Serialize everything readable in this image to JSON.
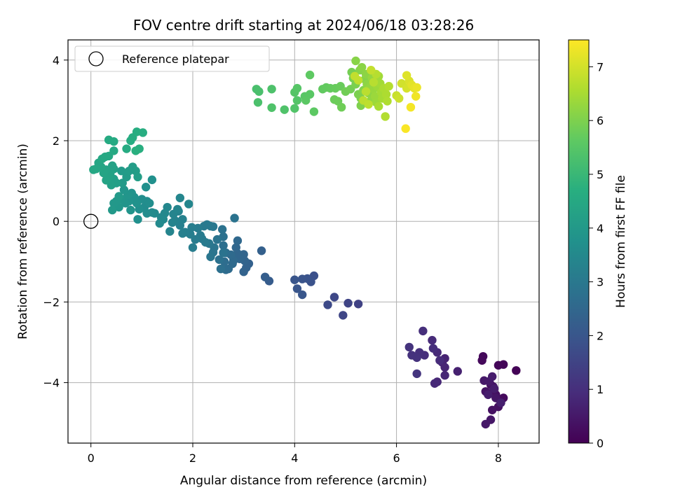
{
  "chart_data": {
    "type": "scatter",
    "title": "FOV centre drift starting at 2024/06/18 03:28:26",
    "xlabel": "Angular distance from reference (arcmin)",
    "ylabel": "Rotation from reference (arcmin)",
    "xlim": [
      -0.45,
      8.8
    ],
    "ylim": [
      -5.5,
      4.5
    ],
    "xticks": [
      0,
      2,
      4,
      6,
      8
    ],
    "yticks": [
      -4,
      -2,
      0,
      2,
      4
    ],
    "grid": true,
    "legend": {
      "placement": "top-left",
      "entries": [
        "Reference platepar"
      ]
    },
    "reference_point": {
      "x": 0,
      "y": 0,
      "label": "Reference platepar"
    },
    "colorbar": {
      "label": "Hours from first FF file",
      "range": [
        0,
        7.5
      ],
      "ticks": [
        0,
        1,
        2,
        3,
        4,
        5,
        6,
        7
      ],
      "colormap": "viridis"
    },
    "points": [
      {
        "x": 8.35,
        "y": -3.7,
        "t": 0.05
      },
      {
        "x": 8.1,
        "y": -3.55,
        "t": 0.1
      },
      {
        "x": 8.0,
        "y": -3.57,
        "t": 0.12
      },
      {
        "x": 7.7,
        "y": -3.35,
        "t": 0.15
      },
      {
        "x": 7.68,
        "y": -3.45,
        "t": 0.18
      },
      {
        "x": 8.1,
        "y": -4.38,
        "t": 0.2
      },
      {
        "x": 8.02,
        "y": -4.42,
        "t": 0.22
      },
      {
        "x": 7.9,
        "y": -4.25,
        "t": 0.25
      },
      {
        "x": 7.85,
        "y": -4.05,
        "t": 0.28
      },
      {
        "x": 7.95,
        "y": -4.3,
        "t": 0.3
      },
      {
        "x": 8.0,
        "y": -4.6,
        "t": 0.32
      },
      {
        "x": 7.88,
        "y": -4.68,
        "t": 0.35
      },
      {
        "x": 7.75,
        "y": -4.22,
        "t": 0.38
      },
      {
        "x": 7.9,
        "y": -4.1,
        "t": 0.4
      },
      {
        "x": 7.78,
        "y": -4.25,
        "t": 0.42
      },
      {
        "x": 7.95,
        "y": -4.38,
        "t": 0.45
      },
      {
        "x": 7.85,
        "y": -4.92,
        "t": 0.48
      },
      {
        "x": 7.75,
        "y": -5.03,
        "t": 0.5
      },
      {
        "x": 7.72,
        "y": -3.95,
        "t": 0.52
      },
      {
        "x": 7.82,
        "y": -3.97,
        "t": 0.55
      },
      {
        "x": 7.88,
        "y": -3.85,
        "t": 0.58
      },
      {
        "x": 7.92,
        "y": -4.15,
        "t": 0.6
      },
      {
        "x": 7.8,
        "y": -4.3,
        "t": 0.62
      },
      {
        "x": 8.05,
        "y": -4.5,
        "t": 0.65
      },
      {
        "x": 7.2,
        "y": -3.72,
        "t": 0.7
      },
      {
        "x": 6.95,
        "y": -3.4,
        "t": 0.75
      },
      {
        "x": 6.9,
        "y": -3.5,
        "t": 0.78
      },
      {
        "x": 6.95,
        "y": -3.62,
        "t": 0.8
      },
      {
        "x": 6.95,
        "y": -3.82,
        "t": 0.82
      },
      {
        "x": 6.8,
        "y": -3.98,
        "t": 0.85
      },
      {
        "x": 6.75,
        "y": -4.02,
        "t": 0.88
      },
      {
        "x": 6.8,
        "y": -3.25,
        "t": 0.9
      },
      {
        "x": 6.7,
        "y": -2.95,
        "t": 0.92
      },
      {
        "x": 6.85,
        "y": -3.45,
        "t": 0.95
      },
      {
        "x": 6.72,
        "y": -3.15,
        "t": 0.98
      },
      {
        "x": 6.55,
        "y": -3.32,
        "t": 1.0
      },
      {
        "x": 6.52,
        "y": -2.72,
        "t": 1.02
      },
      {
        "x": 6.45,
        "y": -3.25,
        "t": 1.05
      },
      {
        "x": 6.4,
        "y": -3.38,
        "t": 1.08
      },
      {
        "x": 6.3,
        "y": -3.32,
        "t": 1.1
      },
      {
        "x": 6.25,
        "y": -3.12,
        "t": 1.12
      },
      {
        "x": 6.4,
        "y": -3.78,
        "t": 1.15
      },
      {
        "x": 5.25,
        "y": -2.05,
        "t": 1.5
      },
      {
        "x": 5.05,
        "y": -2.03,
        "t": 1.55
      },
      {
        "x": 4.95,
        "y": -2.33,
        "t": 1.6
      },
      {
        "x": 4.78,
        "y": -1.88,
        "t": 1.65
      },
      {
        "x": 4.65,
        "y": -2.07,
        "t": 1.7
      },
      {
        "x": 4.38,
        "y": -1.35,
        "t": 1.85
      },
      {
        "x": 4.32,
        "y": -1.5,
        "t": 1.9
      },
      {
        "x": 4.25,
        "y": -1.42,
        "t": 1.92
      },
      {
        "x": 4.15,
        "y": -1.43,
        "t": 1.95
      },
      {
        "x": 4.0,
        "y": -1.45,
        "t": 1.98
      },
      {
        "x": 4.05,
        "y": -1.67,
        "t": 2.0
      },
      {
        "x": 4.15,
        "y": -1.82,
        "t": 2.02
      },
      {
        "x": 3.5,
        "y": -1.48,
        "t": 2.2
      },
      {
        "x": 3.42,
        "y": -1.38,
        "t": 2.25
      },
      {
        "x": 3.35,
        "y": -0.73,
        "t": 2.3
      },
      {
        "x": 3.1,
        "y": -1.05,
        "t": 2.35
      },
      {
        "x": 3.05,
        "y": -1.15,
        "t": 2.38
      },
      {
        "x": 3.0,
        "y": -1.25,
        "t": 2.4
      },
      {
        "x": 3.02,
        "y": -0.98,
        "t": 2.42
      },
      {
        "x": 3.0,
        "y": -0.82,
        "t": 2.45
      },
      {
        "x": 2.92,
        "y": -0.93,
        "t": 2.48
      },
      {
        "x": 2.88,
        "y": -0.8,
        "t": 2.5
      },
      {
        "x": 2.85,
        "y": -0.65,
        "t": 2.52
      },
      {
        "x": 2.88,
        "y": -0.48,
        "t": 2.55
      },
      {
        "x": 2.8,
        "y": -0.97,
        "t": 2.58
      },
      {
        "x": 2.78,
        "y": -1.05,
        "t": 2.6
      },
      {
        "x": 2.75,
        "y": -0.83,
        "t": 2.62
      },
      {
        "x": 2.7,
        "y": -1.18,
        "t": 2.65
      },
      {
        "x": 2.65,
        "y": -1.2,
        "t": 2.67
      },
      {
        "x": 2.62,
        "y": -1.0,
        "t": 2.7
      },
      {
        "x": 2.65,
        "y": -0.78,
        "t": 2.72
      },
      {
        "x": 2.6,
        "y": -0.6,
        "t": 2.75
      },
      {
        "x": 2.55,
        "y": -1.18,
        "t": 2.78
      },
      {
        "x": 2.52,
        "y": -0.95,
        "t": 2.8
      },
      {
        "x": 2.6,
        "y": -0.38,
        "t": 2.82
      },
      {
        "x": 2.58,
        "y": -0.2,
        "t": 2.84
      },
      {
        "x": 2.82,
        "y": 0.08,
        "t": 2.86
      },
      {
        "x": 2.6,
        "y": -0.78,
        "t": 2.88
      },
      {
        "x": 2.48,
        "y": -0.45,
        "t": 2.9
      },
      {
        "x": 2.42,
        "y": -0.65,
        "t": 2.92
      },
      {
        "x": 2.4,
        "y": -0.77,
        "t": 2.94
      },
      {
        "x": 2.35,
        "y": -0.88,
        "t": 2.96
      },
      {
        "x": 2.32,
        "y": -0.55,
        "t": 2.98
      },
      {
        "x": 2.4,
        "y": -0.13,
        "t": 3.0
      },
      {
        "x": 2.35,
        "y": -0.12,
        "t": 3.02
      },
      {
        "x": 2.28,
        "y": -0.08,
        "t": 3.04
      },
      {
        "x": 2.22,
        "y": -0.12,
        "t": 3.06
      },
      {
        "x": 2.18,
        "y": -0.43,
        "t": 3.08
      },
      {
        "x": 2.25,
        "y": -0.52,
        "t": 3.1
      },
      {
        "x": 2.15,
        "y": -0.35,
        "t": 3.12
      },
      {
        "x": 2.1,
        "y": -0.17,
        "t": 3.14
      },
      {
        "x": 2.05,
        "y": -0.45,
        "t": 3.16
      },
      {
        "x": 2.0,
        "y": -0.65,
        "t": 3.18
      },
      {
        "x": 1.95,
        "y": -0.32,
        "t": 3.2
      },
      {
        "x": 1.98,
        "y": -0.15,
        "t": 3.22
      },
      {
        "x": 1.85,
        "y": -0.27,
        "t": 3.24
      },
      {
        "x": 1.8,
        "y": -0.3,
        "t": 3.26
      },
      {
        "x": 1.75,
        "y": -0.1,
        "t": 3.28
      },
      {
        "x": 1.8,
        "y": 0.05,
        "t": 3.3
      },
      {
        "x": 1.72,
        "y": 0.25,
        "t": 3.32
      },
      {
        "x": 1.65,
        "y": 0.02,
        "t": 3.34
      },
      {
        "x": 1.6,
        "y": -0.03,
        "t": 3.36
      },
      {
        "x": 1.55,
        "y": -0.25,
        "t": 3.38
      },
      {
        "x": 1.62,
        "y": 0.18,
        "t": 3.4
      },
      {
        "x": 1.7,
        "y": 0.3,
        "t": 3.42
      },
      {
        "x": 1.75,
        "y": 0.58,
        "t": 3.44
      },
      {
        "x": 1.92,
        "y": 0.43,
        "t": 3.46
      },
      {
        "x": 1.5,
        "y": 0.35,
        "t": 3.48
      },
      {
        "x": 1.45,
        "y": 0.2,
        "t": 3.5
      },
      {
        "x": 1.38,
        "y": 0.1,
        "t": 3.52
      },
      {
        "x": 1.42,
        "y": 0.05,
        "t": 3.54
      },
      {
        "x": 1.35,
        "y": -0.05,
        "t": 3.56
      },
      {
        "x": 1.25,
        "y": 0.2,
        "t": 3.58
      },
      {
        "x": 1.2,
        "y": 0.22,
        "t": 3.6
      },
      {
        "x": 1.1,
        "y": 0.2,
        "t": 3.62
      },
      {
        "x": 1.05,
        "y": 0.35,
        "t": 3.64
      },
      {
        "x": 1.1,
        "y": 0.5,
        "t": 3.66
      },
      {
        "x": 1.15,
        "y": 0.45,
        "t": 3.68
      },
      {
        "x": 1.0,
        "y": 0.55,
        "t": 3.7
      },
      {
        "x": 0.95,
        "y": 0.3,
        "t": 3.72
      },
      {
        "x": 0.92,
        "y": 0.05,
        "t": 3.74
      },
      {
        "x": 1.08,
        "y": 0.85,
        "t": 3.76
      },
      {
        "x": 1.2,
        "y": 1.03,
        "t": 3.78
      },
      {
        "x": 0.9,
        "y": 0.45,
        "t": 3.8
      },
      {
        "x": 0.85,
        "y": 0.6,
        "t": 3.82
      },
      {
        "x": 0.8,
        "y": 0.7,
        "t": 3.84
      },
      {
        "x": 0.75,
        "y": 0.5,
        "t": 3.86
      },
      {
        "x": 0.78,
        "y": 0.28,
        "t": 3.88
      },
      {
        "x": 0.72,
        "y": 0.65,
        "t": 3.9
      },
      {
        "x": 0.68,
        "y": 0.45,
        "t": 3.92
      },
      {
        "x": 0.65,
        "y": 0.78,
        "t": 3.94
      },
      {
        "x": 0.6,
        "y": 0.55,
        "t": 3.96
      },
      {
        "x": 0.55,
        "y": 0.35,
        "t": 3.98
      },
      {
        "x": 0.5,
        "y": 0.5,
        "t": 4.0
      },
      {
        "x": 0.45,
        "y": 0.45,
        "t": 4.02
      },
      {
        "x": 0.42,
        "y": 0.28,
        "t": 4.04
      },
      {
        "x": 0.55,
        "y": 0.62,
        "t": 4.06
      },
      {
        "x": 0.62,
        "y": 0.95,
        "t": 4.08
      },
      {
        "x": 0.6,
        "y": 1.25,
        "t": 4.1
      },
      {
        "x": 0.7,
        "y": 1.1,
        "t": 4.12
      },
      {
        "x": 0.75,
        "y": 1.25,
        "t": 4.14
      },
      {
        "x": 0.82,
        "y": 1.35,
        "t": 4.16
      },
      {
        "x": 0.88,
        "y": 1.25,
        "t": 4.18
      },
      {
        "x": 0.92,
        "y": 1.1,
        "t": 4.2
      },
      {
        "x": 0.5,
        "y": 0.95,
        "t": 4.22
      },
      {
        "x": 0.45,
        "y": 1.05,
        "t": 4.24
      },
      {
        "x": 0.4,
        "y": 0.9,
        "t": 4.26
      },
      {
        "x": 0.45,
        "y": 1.3,
        "t": 4.28
      },
      {
        "x": 0.42,
        "y": 1.38,
        "t": 4.3
      },
      {
        "x": 0.38,
        "y": 1.2,
        "t": 4.32
      },
      {
        "x": 0.35,
        "y": 1.1,
        "t": 4.34
      },
      {
        "x": 0.3,
        "y": 1.02,
        "t": 4.36
      },
      {
        "x": 0.3,
        "y": 1.28,
        "t": 4.38
      },
      {
        "x": 0.25,
        "y": 1.2,
        "t": 4.4
      },
      {
        "x": 0.2,
        "y": 1.35,
        "t": 4.42
      },
      {
        "x": 0.15,
        "y": 1.45,
        "t": 4.44
      },
      {
        "x": 0.1,
        "y": 1.3,
        "t": 4.46
      },
      {
        "x": 0.05,
        "y": 1.28,
        "t": 4.48
      },
      {
        "x": 0.22,
        "y": 1.55,
        "t": 4.5
      },
      {
        "x": 0.28,
        "y": 1.6,
        "t": 4.52
      },
      {
        "x": 0.35,
        "y": 1.62,
        "t": 4.54
      },
      {
        "x": 0.45,
        "y": 1.75,
        "t": 4.56
      },
      {
        "x": 0.35,
        "y": 2.02,
        "t": 4.58
      },
      {
        "x": 0.45,
        "y": 1.98,
        "t": 4.6
      },
      {
        "x": 0.7,
        "y": 1.8,
        "t": 4.62
      },
      {
        "x": 0.78,
        "y": 2.0,
        "t": 4.64
      },
      {
        "x": 0.82,
        "y": 2.08,
        "t": 4.66
      },
      {
        "x": 0.9,
        "y": 2.22,
        "t": 4.68
      },
      {
        "x": 1.02,
        "y": 2.2,
        "t": 4.7
      },
      {
        "x": 0.95,
        "y": 1.8,
        "t": 4.72
      },
      {
        "x": 0.88,
        "y": 1.75,
        "t": 4.74
      },
      {
        "x": 3.25,
        "y": 3.28,
        "t": 5.3
      },
      {
        "x": 3.3,
        "y": 3.22,
        "t": 5.32
      },
      {
        "x": 3.28,
        "y": 2.95,
        "t": 5.35
      },
      {
        "x": 3.55,
        "y": 3.28,
        "t": 5.38
      },
      {
        "x": 3.55,
        "y": 2.82,
        "t": 5.4
      },
      {
        "x": 3.8,
        "y": 2.77,
        "t": 5.42
      },
      {
        "x": 4.0,
        "y": 2.8,
        "t": 5.45
      },
      {
        "x": 4.05,
        "y": 3.0,
        "t": 5.48
      },
      {
        "x": 4.0,
        "y": 3.2,
        "t": 5.5
      },
      {
        "x": 4.05,
        "y": 3.3,
        "t": 5.52
      },
      {
        "x": 4.2,
        "y": 3.1,
        "t": 5.55
      },
      {
        "x": 4.3,
        "y": 3.15,
        "t": 5.58
      },
      {
        "x": 4.22,
        "y": 3.0,
        "t": 5.6
      },
      {
        "x": 4.38,
        "y": 2.72,
        "t": 5.62
      },
      {
        "x": 4.3,
        "y": 3.63,
        "t": 5.65
      },
      {
        "x": 4.55,
        "y": 3.28,
        "t": 5.68
      },
      {
        "x": 4.62,
        "y": 3.32,
        "t": 5.7
      },
      {
        "x": 4.7,
        "y": 3.3,
        "t": 5.72
      },
      {
        "x": 4.8,
        "y": 3.3,
        "t": 5.75
      },
      {
        "x": 4.9,
        "y": 3.35,
        "t": 5.78
      },
      {
        "x": 4.78,
        "y": 3.02,
        "t": 5.8
      },
      {
        "x": 4.85,
        "y": 2.98,
        "t": 5.82
      },
      {
        "x": 4.92,
        "y": 2.83,
        "t": 5.85
      },
      {
        "x": 5.0,
        "y": 3.22,
        "t": 5.88
      },
      {
        "x": 5.1,
        "y": 3.28,
        "t": 5.9
      },
      {
        "x": 5.12,
        "y": 3.7,
        "t": 5.92
      },
      {
        "x": 5.15,
        "y": 3.55,
        "t": 5.95
      },
      {
        "x": 5.2,
        "y": 3.4,
        "t": 5.98
      },
      {
        "x": 5.25,
        "y": 3.15,
        "t": 6.0
      },
      {
        "x": 5.3,
        "y": 3.05,
        "t": 6.02
      },
      {
        "x": 5.3,
        "y": 2.87,
        "t": 6.05
      },
      {
        "x": 5.35,
        "y": 3.25,
        "t": 6.08
      },
      {
        "x": 5.38,
        "y": 3.52,
        "t": 6.1
      },
      {
        "x": 5.28,
        "y": 3.75,
        "t": 6.12
      },
      {
        "x": 5.2,
        "y": 3.98,
        "t": 6.15
      },
      {
        "x": 5.32,
        "y": 3.82,
        "t": 6.18
      },
      {
        "x": 5.4,
        "y": 3.65,
        "t": 6.2
      },
      {
        "x": 5.42,
        "y": 3.4,
        "t": 6.22
      },
      {
        "x": 5.45,
        "y": 3.18,
        "t": 6.25
      },
      {
        "x": 5.5,
        "y": 3.0,
        "t": 6.28
      },
      {
        "x": 5.48,
        "y": 3.32,
        "t": 6.3
      },
      {
        "x": 5.52,
        "y": 3.55,
        "t": 6.32
      },
      {
        "x": 5.55,
        "y": 3.28,
        "t": 6.35
      },
      {
        "x": 5.58,
        "y": 3.1,
        "t": 6.38
      },
      {
        "x": 5.6,
        "y": 2.95,
        "t": 6.4
      },
      {
        "x": 5.62,
        "y": 3.35,
        "t": 6.42
      },
      {
        "x": 5.65,
        "y": 3.6,
        "t": 6.45
      },
      {
        "x": 5.68,
        "y": 3.42,
        "t": 6.48
      },
      {
        "x": 5.7,
        "y": 3.2,
        "t": 6.5
      },
      {
        "x": 5.72,
        "y": 3.05,
        "t": 6.52
      },
      {
        "x": 5.65,
        "y": 2.85,
        "t": 6.55
      },
      {
        "x": 5.75,
        "y": 3.3,
        "t": 6.58
      },
      {
        "x": 5.8,
        "y": 3.15,
        "t": 6.6
      },
      {
        "x": 5.82,
        "y": 2.98,
        "t": 6.62
      },
      {
        "x": 5.78,
        "y": 2.6,
        "t": 6.65
      },
      {
        "x": 5.85,
        "y": 3.35,
        "t": 6.68
      },
      {
        "x": 5.6,
        "y": 3.65,
        "t": 6.7
      },
      {
        "x": 5.55,
        "y": 3.45,
        "t": 6.72
      },
      {
        "x": 5.4,
        "y": 3.22,
        "t": 6.74
      },
      {
        "x": 5.35,
        "y": 3.0,
        "t": 6.76
      },
      {
        "x": 5.45,
        "y": 2.9,
        "t": 6.78
      },
      {
        "x": 5.25,
        "y": 3.5,
        "t": 6.8
      },
      {
        "x": 5.18,
        "y": 3.6,
        "t": 6.82
      },
      {
        "x": 5.5,
        "y": 3.75,
        "t": 6.84
      },
      {
        "x": 6.0,
        "y": 3.12,
        "t": 6.9
      },
      {
        "x": 6.05,
        "y": 3.05,
        "t": 6.95
      },
      {
        "x": 6.1,
        "y": 3.42,
        "t": 7.0
      },
      {
        "x": 6.2,
        "y": 3.3,
        "t": 7.05
      },
      {
        "x": 6.25,
        "y": 3.48,
        "t": 7.1
      },
      {
        "x": 6.2,
        "y": 3.62,
        "t": 7.15
      },
      {
        "x": 6.3,
        "y": 3.38,
        "t": 7.2
      },
      {
        "x": 6.35,
        "y": 3.3,
        "t": 7.25
      },
      {
        "x": 6.4,
        "y": 3.32,
        "t": 7.3
      },
      {
        "x": 6.38,
        "y": 3.1,
        "t": 7.35
      },
      {
        "x": 6.28,
        "y": 2.83,
        "t": 7.4
      },
      {
        "x": 6.18,
        "y": 2.3,
        "t": 7.45
      }
    ]
  }
}
